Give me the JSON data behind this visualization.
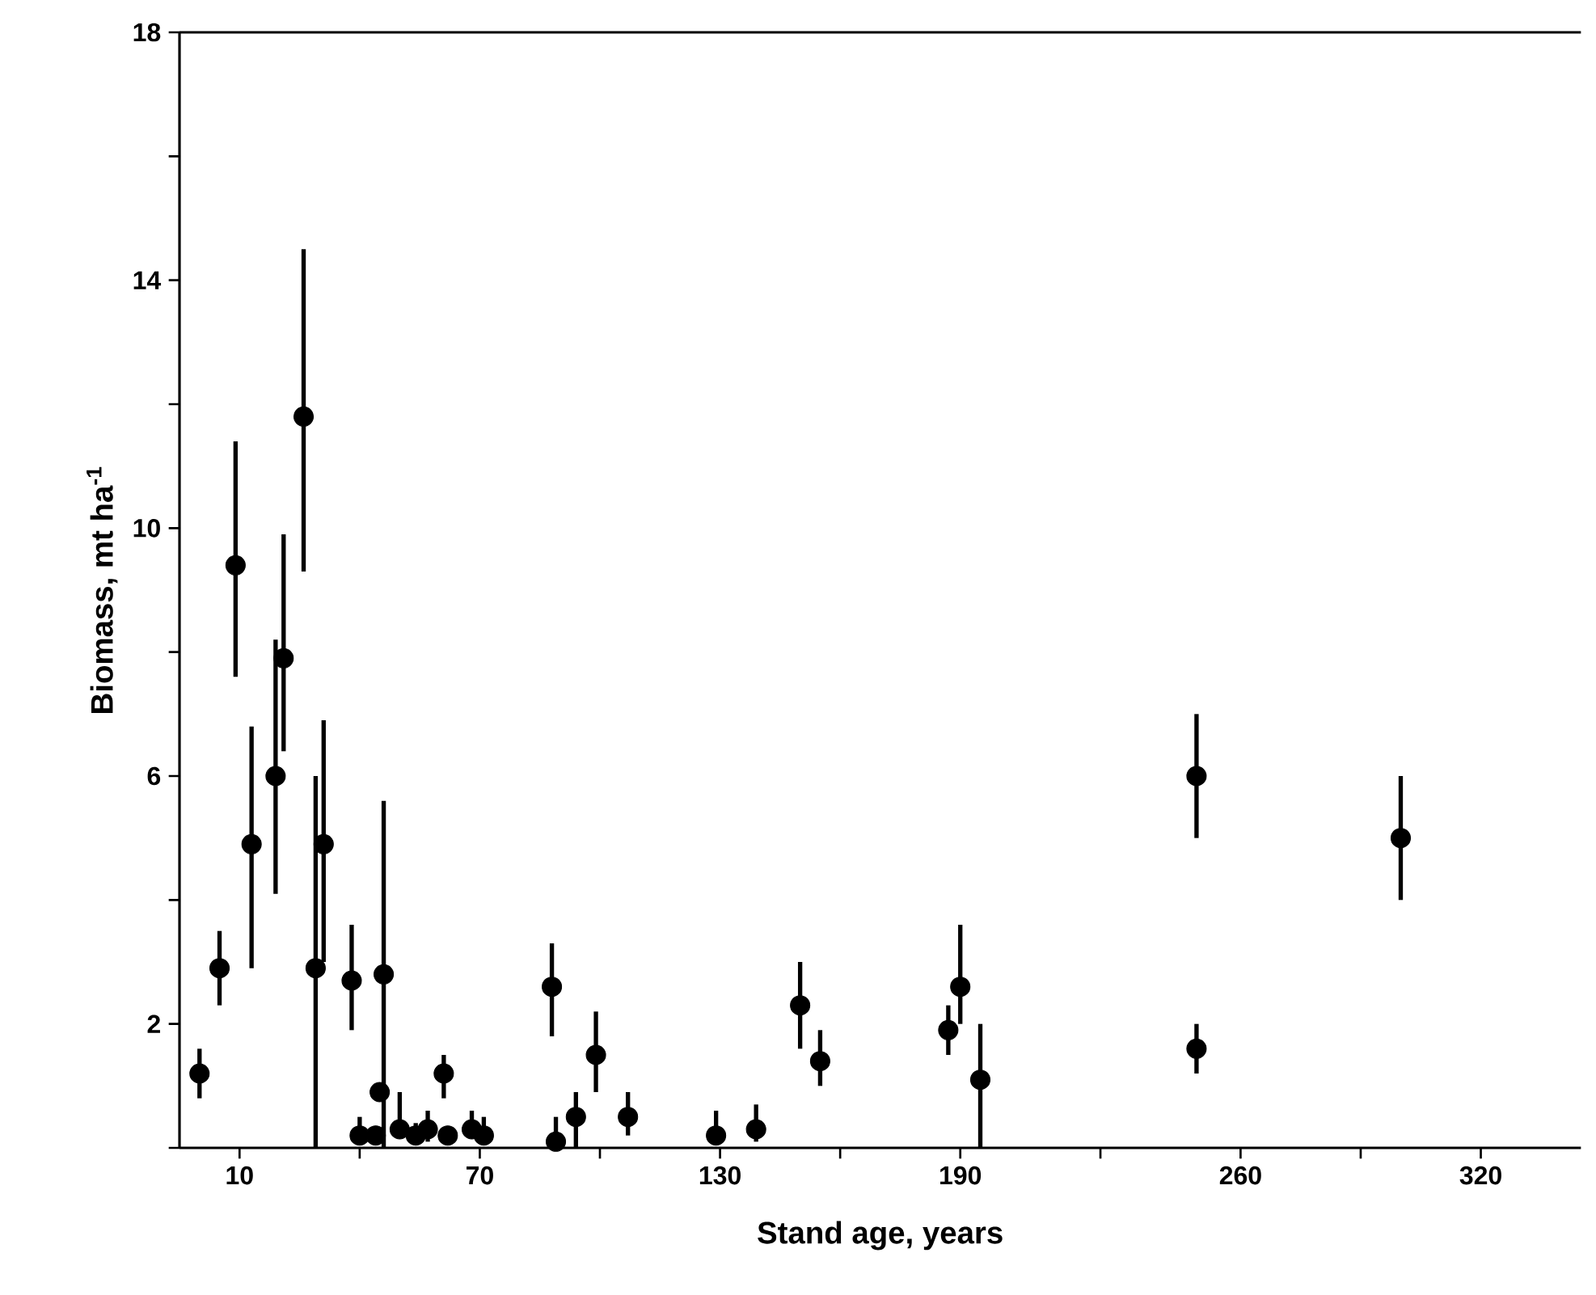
{
  "chart_data": {
    "type": "scatter",
    "xlabel": "Stand age, years",
    "ylabel": "Biomass, mt ha$^{-1}$",
    "x": [
      0,
      5,
      9,
      13,
      19,
      21,
      26,
      29,
      31,
      38,
      40,
      44,
      45,
      46,
      50,
      54,
      57,
      61,
      62,
      68,
      71,
      88,
      89,
      94,
      99,
      107,
      129,
      139,
      150,
      155,
      187,
      190,
      195,
      249,
      249,
      300
    ],
    "values": [
      1.2,
      2.9,
      9.4,
      4.9,
      6.0,
      7.9,
      11.8,
      2.9,
      4.9,
      2.7,
      0.2,
      0.2,
      0.9,
      2.8,
      0.3,
      0.2,
      0.3,
      1.2,
      0.2,
      0.3,
      0.2,
      2.6,
      0.1,
      0.5,
      1.5,
      0.5,
      0.2,
      0.3,
      2.3,
      1.4,
      1.9,
      2.6,
      1.1,
      6.0,
      1.6,
      5.0
    ],
    "errors": [
      [
        0.8,
        1.6
      ],
      [
        2.3,
        3.5
      ],
      [
        7.6,
        11.4
      ],
      [
        2.9,
        6.8
      ],
      [
        4.1,
        8.2
      ],
      [
        6.4,
        9.9
      ],
      [
        9.3,
        14.5
      ],
      [
        0,
        6.0
      ],
      [
        3.0,
        6.9
      ],
      [
        1.9,
        3.6
      ],
      [
        0.2,
        0.5
      ],
      null,
      null,
      [
        0,
        5.6
      ],
      [
        0.3,
        0.9
      ],
      [
        0.2,
        0.4
      ],
      [
        0.1,
        0.6
      ],
      [
        0.8,
        1.5
      ],
      null,
      [
        0.3,
        0.6
      ],
      [
        0.2,
        0.5
      ],
      [
        1.8,
        3.3
      ],
      [
        0,
        0.5
      ],
      [
        0,
        0.9
      ],
      [
        0.9,
        2.2
      ],
      [
        0.2,
        0.9
      ],
      [
        0.2,
        0.6
      ],
      [
        0.1,
        0.7
      ],
      [
        1.6,
        3.0
      ],
      [
        1.0,
        1.9
      ],
      [
        1.5,
        2.3
      ],
      [
        2.0,
        3.6
      ],
      [
        0,
        2.0
      ],
      [
        5.0,
        7.0
      ],
      [
        1.2,
        2.0
      ],
      [
        4.0,
        6.0
      ]
    ],
    "color": "#000000",
    "marker": "circle",
    "xlim": [
      -5,
      345
    ],
    "xticks": [
      10,
      {
        "value": 40,
        "label": null
      },
      70,
      {
        "value": 100,
        "label": null
      },
      130,
      {
        "value": 160,
        "label": null
      },
      190,
      {
        "value": 225,
        "label": null
      },
      260,
      {
        "value": 290,
        "label": null
      },
      320
    ],
    "ylim": [
      0,
      18
    ],
    "yticks": [
      {
        "value": 0,
        "label": null
      },
      2,
      {
        "value": 4,
        "label": null
      },
      6,
      {
        "value": 8,
        "label": null
      },
      10,
      {
        "value": 12,
        "label": null
      },
      14,
      {
        "value": 16,
        "label": null
      },
      18
    ]
  }
}
